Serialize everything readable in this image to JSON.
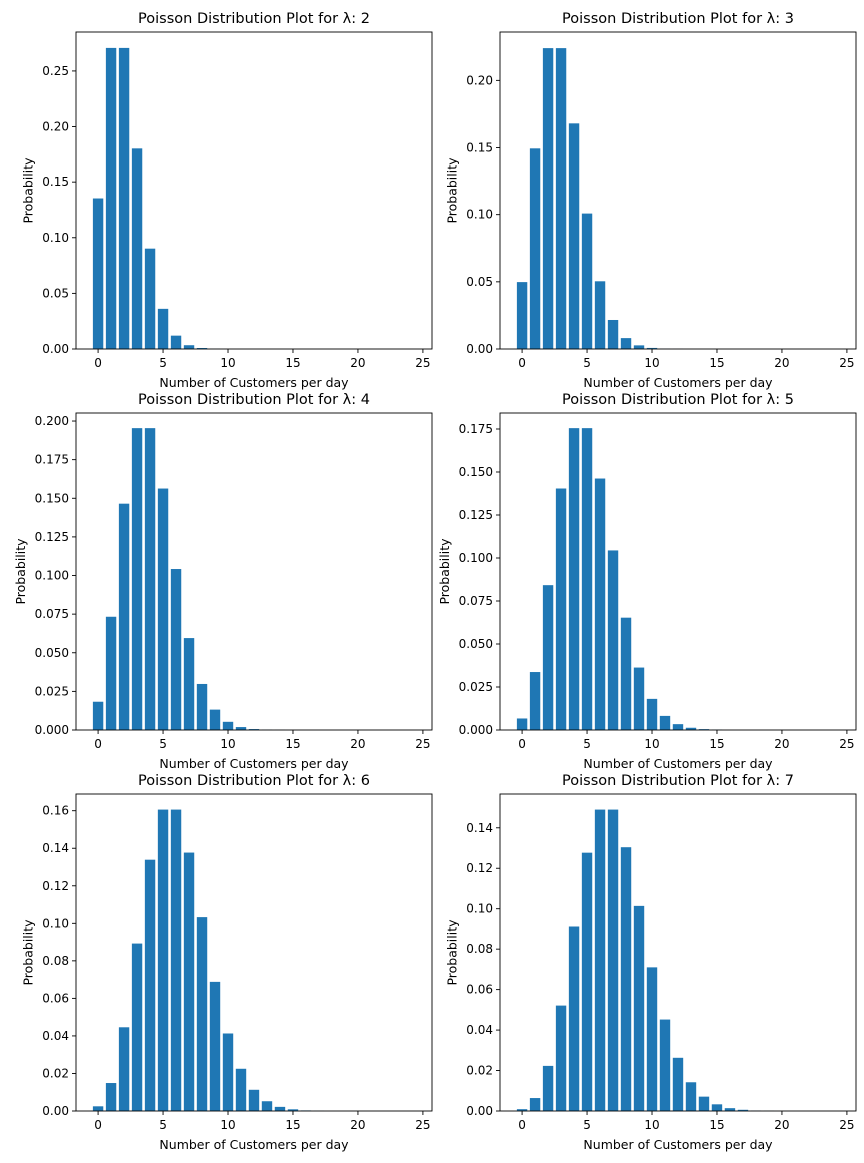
{
  "chart_data": [
    {
      "type": "bar",
      "title": "Poisson Distribution Plot for λ: 2",
      "xlabel": "Number of Customers per day",
      "ylabel": "Probability",
      "xlim": [
        -1.7,
        25.7
      ],
      "ylim": [
        0,
        0.285
      ],
      "xticks": [
        0,
        5,
        10,
        15,
        20,
        25
      ],
      "xtick_labels": [
        "0",
        "5",
        "10",
        "15",
        "20",
        "25"
      ],
      "yticks": [
        0,
        0.05,
        0.1,
        0.15,
        0.2,
        0.25
      ],
      "ytick_labels": [
        "0.00",
        "0.05",
        "0.10",
        "0.15",
        "0.20",
        "0.25"
      ],
      "color": "#1f77b4",
      "x": [
        0,
        1,
        2,
        3,
        4,
        5,
        6,
        7,
        8,
        9,
        10,
        11,
        12,
        13,
        14,
        15,
        16,
        17,
        18,
        19,
        20,
        21,
        22,
        23,
        24
      ],
      "values": [
        0.1353,
        0.2707,
        0.2707,
        0.1804,
        0.0902,
        0.0361,
        0.012,
        0.0034,
        0.0009,
        0.0002,
        0.0,
        0.0,
        0.0,
        0.0,
        0.0,
        0.0,
        0.0,
        0.0,
        0.0,
        0.0,
        0.0,
        0.0,
        0.0,
        0.0,
        0.0
      ]
    },
    {
      "type": "bar",
      "title": "Poisson Distribution Plot for λ: 3",
      "xlabel": "Number of Customers per day",
      "ylabel": "Probability",
      "xlim": [
        -1.7,
        25.7
      ],
      "ylim": [
        0,
        0.236
      ],
      "xticks": [
        0,
        5,
        10,
        15,
        20,
        25
      ],
      "xtick_labels": [
        "0",
        "5",
        "10",
        "15",
        "20",
        "25"
      ],
      "yticks": [
        0,
        0.05,
        0.1,
        0.15,
        0.2
      ],
      "ytick_labels": [
        "0.00",
        "0.05",
        "0.10",
        "0.15",
        "0.20"
      ],
      "color": "#1f77b4",
      "x": [
        0,
        1,
        2,
        3,
        4,
        5,
        6,
        7,
        8,
        9,
        10,
        11,
        12,
        13,
        14,
        15,
        16,
        17,
        18,
        19,
        20,
        21,
        22,
        23,
        24
      ],
      "values": [
        0.0498,
        0.1494,
        0.224,
        0.224,
        0.168,
        0.1008,
        0.0504,
        0.0216,
        0.0081,
        0.0027,
        0.0008,
        0.0002,
        0.0001,
        0.0,
        0.0,
        0.0,
        0.0,
        0.0,
        0.0,
        0.0,
        0.0,
        0.0,
        0.0,
        0.0,
        0.0
      ]
    },
    {
      "type": "bar",
      "title": "Poisson Distribution Plot for λ: 4",
      "xlabel": "Number of Customers per day",
      "ylabel": "Probability",
      "xlim": [
        -1.7,
        25.7
      ],
      "ylim": [
        0,
        0.2052
      ],
      "xticks": [
        0,
        5,
        10,
        15,
        20,
        25
      ],
      "xtick_labels": [
        "0",
        "5",
        "10",
        "15",
        "20",
        "25"
      ],
      "yticks": [
        0,
        0.025,
        0.05,
        0.075,
        0.1,
        0.125,
        0.15,
        0.175,
        0.2
      ],
      "ytick_labels": [
        "0.000",
        "0.025",
        "0.050",
        "0.075",
        "0.100",
        "0.125",
        "0.150",
        "0.175",
        "0.200"
      ],
      "color": "#1f77b4",
      "x": [
        0,
        1,
        2,
        3,
        4,
        5,
        6,
        7,
        8,
        9,
        10,
        11,
        12,
        13,
        14,
        15,
        16,
        17,
        18,
        19,
        20,
        21,
        22,
        23,
        24
      ],
      "values": [
        0.0183,
        0.0733,
        0.1465,
        0.1954,
        0.1954,
        0.1563,
        0.1042,
        0.0595,
        0.0298,
        0.0132,
        0.0053,
        0.0019,
        0.0006,
        0.0002,
        0.0001,
        0.0,
        0.0,
        0.0,
        0.0,
        0.0,
        0.0,
        0.0,
        0.0,
        0.0,
        0.0
      ]
    },
    {
      "type": "bar",
      "title": "Poisson Distribution Plot for λ: 5",
      "xlabel": "Number of Customers per day",
      "ylabel": "Probability",
      "xlim": [
        -1.7,
        25.7
      ],
      "ylim": [
        0,
        0.1843
      ],
      "xticks": [
        0,
        5,
        10,
        15,
        20,
        25
      ],
      "xtick_labels": [
        "0",
        "5",
        "10",
        "15",
        "20",
        "25"
      ],
      "yticks": [
        0,
        0.025,
        0.05,
        0.075,
        0.1,
        0.125,
        0.15,
        0.175
      ],
      "ytick_labels": [
        "0.000",
        "0.025",
        "0.050",
        "0.075",
        "0.100",
        "0.125",
        "0.150",
        "0.175"
      ],
      "color": "#1f77b4",
      "x": [
        0,
        1,
        2,
        3,
        4,
        5,
        6,
        7,
        8,
        9,
        10,
        11,
        12,
        13,
        14,
        15,
        16,
        17,
        18,
        19,
        20,
        21,
        22,
        23,
        24
      ],
      "values": [
        0.0067,
        0.0337,
        0.0842,
        0.1404,
        0.1755,
        0.1755,
        0.1462,
        0.1044,
        0.0653,
        0.0363,
        0.0181,
        0.0082,
        0.0034,
        0.0013,
        0.0005,
        0.0002,
        0.0,
        0.0,
        0.0,
        0.0,
        0.0,
        0.0,
        0.0,
        0.0,
        0.0
      ]
    },
    {
      "type": "bar",
      "title": "Poisson Distribution Plot for λ: 6",
      "xlabel": "Number of Customers per day",
      "ylabel": "Probability",
      "xlim": [
        -1.7,
        25.7
      ],
      "ylim": [
        0,
        0.1689
      ],
      "xticks": [
        0,
        5,
        10,
        15,
        20,
        25
      ],
      "xtick_labels": [
        "0",
        "5",
        "10",
        "15",
        "20",
        "25"
      ],
      "yticks": [
        0,
        0.02,
        0.04,
        0.06,
        0.08,
        0.1,
        0.12,
        0.14,
        0.16
      ],
      "ytick_labels": [
        "0.00",
        "0.02",
        "0.04",
        "0.06",
        "0.08",
        "0.10",
        "0.12",
        "0.14",
        "0.16"
      ],
      "color": "#1f77b4",
      "x": [
        0,
        1,
        2,
        3,
        4,
        5,
        6,
        7,
        8,
        9,
        10,
        11,
        12,
        13,
        14,
        15,
        16,
        17,
        18,
        19,
        20,
        21,
        22,
        23,
        24
      ],
      "values": [
        0.0025,
        0.0149,
        0.0446,
        0.0892,
        0.1339,
        0.1606,
        0.1606,
        0.1377,
        0.1033,
        0.0688,
        0.0413,
        0.0225,
        0.0113,
        0.0052,
        0.0022,
        0.0009,
        0.0003,
        0.0001,
        0.0,
        0.0,
        0.0,
        0.0,
        0.0,
        0.0,
        0.0
      ]
    },
    {
      "type": "bar",
      "title": "Poisson Distribution Plot for λ: 7",
      "xlabel": "Number of Customers per day",
      "ylabel": "Probability",
      "xlim": [
        -1.7,
        25.7
      ],
      "ylim": [
        0,
        0.1567
      ],
      "xticks": [
        0,
        5,
        10,
        15,
        20,
        25
      ],
      "xtick_labels": [
        "0",
        "5",
        "10",
        "15",
        "20",
        "25"
      ],
      "yticks": [
        0,
        0.02,
        0.04,
        0.06,
        0.08,
        0.1,
        0.12,
        0.14
      ],
      "ytick_labels": [
        "0.00",
        "0.02",
        "0.04",
        "0.06",
        "0.08",
        "0.10",
        "0.12",
        "0.14"
      ],
      "color": "#1f77b4",
      "x": [
        0,
        1,
        2,
        3,
        4,
        5,
        6,
        7,
        8,
        9,
        10,
        11,
        12,
        13,
        14,
        15,
        16,
        17,
        18,
        19,
        20,
        21,
        22,
        23,
        24
      ],
      "values": [
        0.0009,
        0.0064,
        0.0223,
        0.0521,
        0.0912,
        0.1277,
        0.149,
        0.149,
        0.1304,
        0.1014,
        0.071,
        0.0452,
        0.0263,
        0.0142,
        0.0071,
        0.0033,
        0.0014,
        0.0006,
        0.0002,
        0.0001,
        0.0,
        0.0,
        0.0,
        0.0,
        0.0
      ]
    }
  ]
}
